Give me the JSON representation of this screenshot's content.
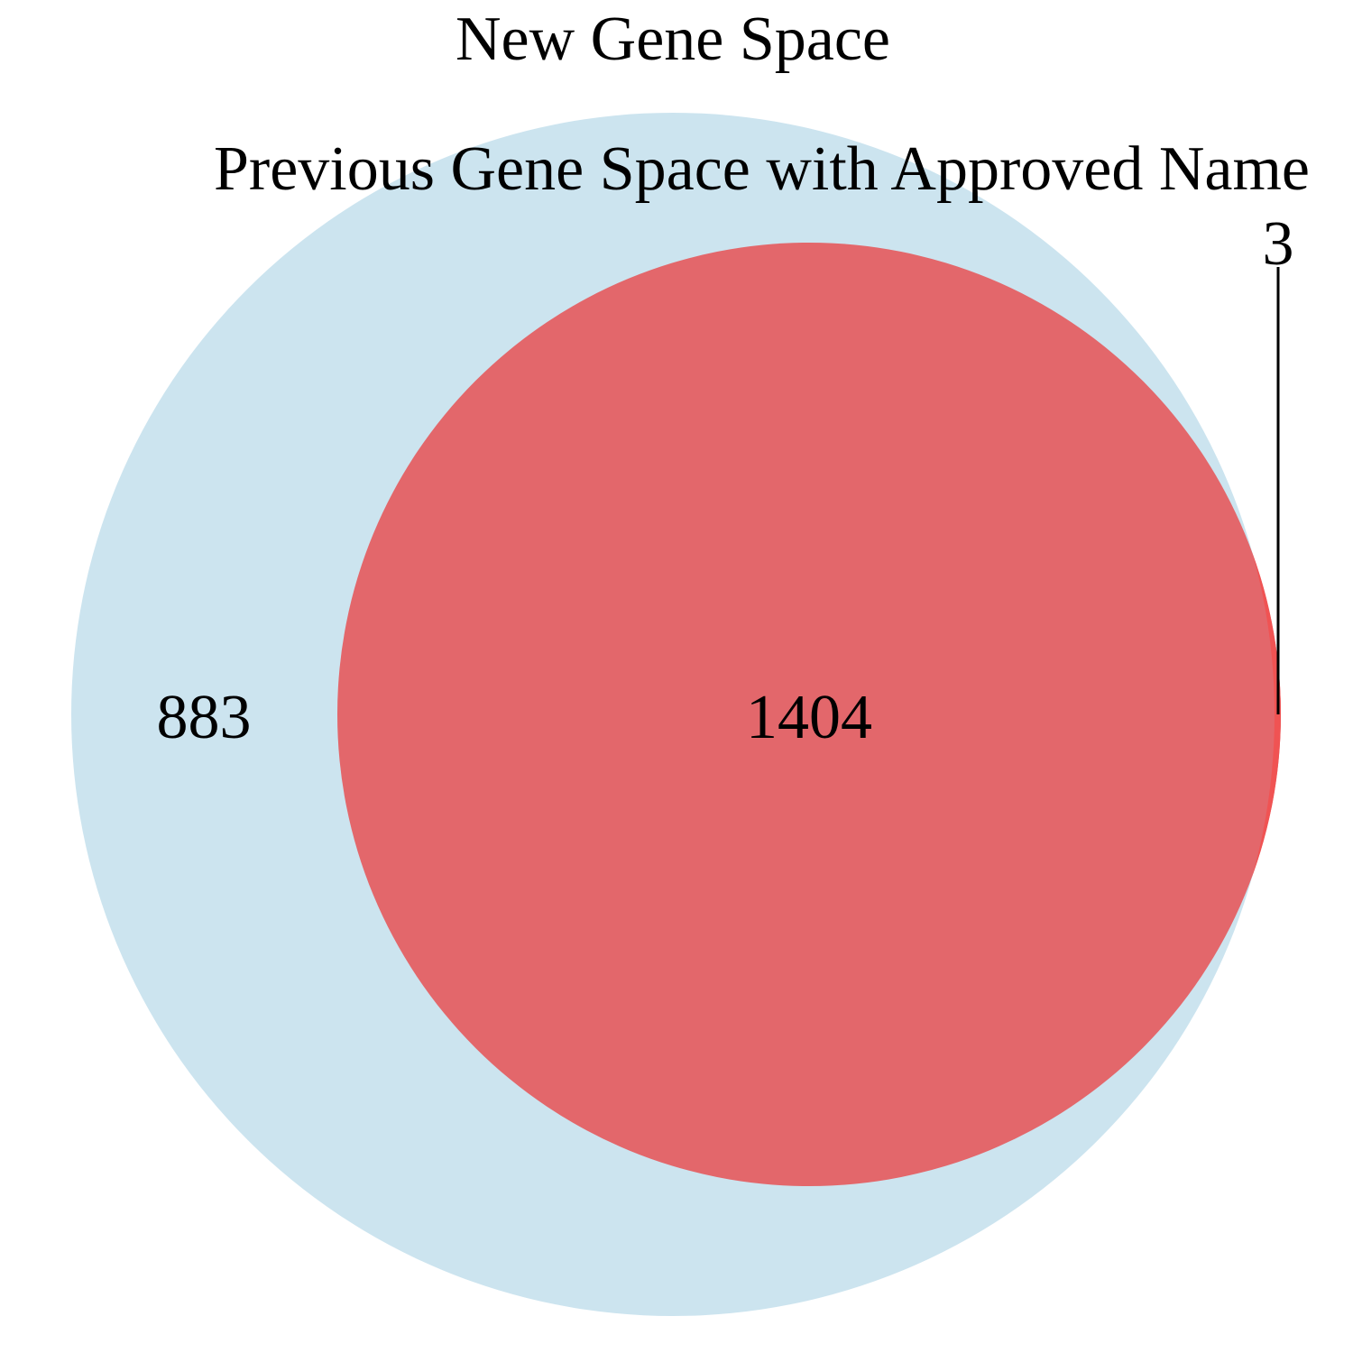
{
  "sets": {
    "outer": {
      "name": "New Gene Space",
      "color": "#cce4ef"
    },
    "inner": {
      "name": "Previous Gene Space with Approved Name",
      "color": "#e3676b"
    }
  },
  "regions": {
    "outer_only": "883",
    "overlap": "1404",
    "inner_only": "3"
  },
  "colors": {
    "inner_only_sliver": "#f05353",
    "leader_line": "#000000"
  }
}
